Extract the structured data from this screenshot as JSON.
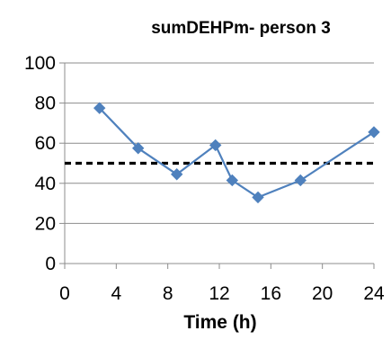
{
  "chart_data": {
    "type": "line",
    "title": "sumDEHPm- person 3",
    "xlabel": "Time (h)",
    "ylabel": "",
    "xlim": [
      0,
      24
    ],
    "ylim": [
      0,
      100
    ],
    "x_ticks": [
      0,
      4,
      8,
      12,
      16,
      20,
      24
    ],
    "y_ticks": [
      0,
      20,
      40,
      60,
      80,
      100
    ],
    "grid": "horizontal",
    "legend": "none",
    "series": [
      {
        "style": "solid line with diamond markers",
        "color": "#4F81BD",
        "marker_color": "#4F81BD",
        "x": [
          2.7,
          5.7,
          8.7,
          11.7,
          13.0,
          15.0,
          18.3,
          24.0
        ],
        "y": [
          77.5,
          57.5,
          44.5,
          59.0,
          41.5,
          33.0,
          41.5,
          65.5
        ]
      },
      {
        "style": "dashed reference line",
        "color": "#000000",
        "x": [
          0,
          24
        ],
        "y": [
          50,
          50
        ]
      }
    ]
  }
}
